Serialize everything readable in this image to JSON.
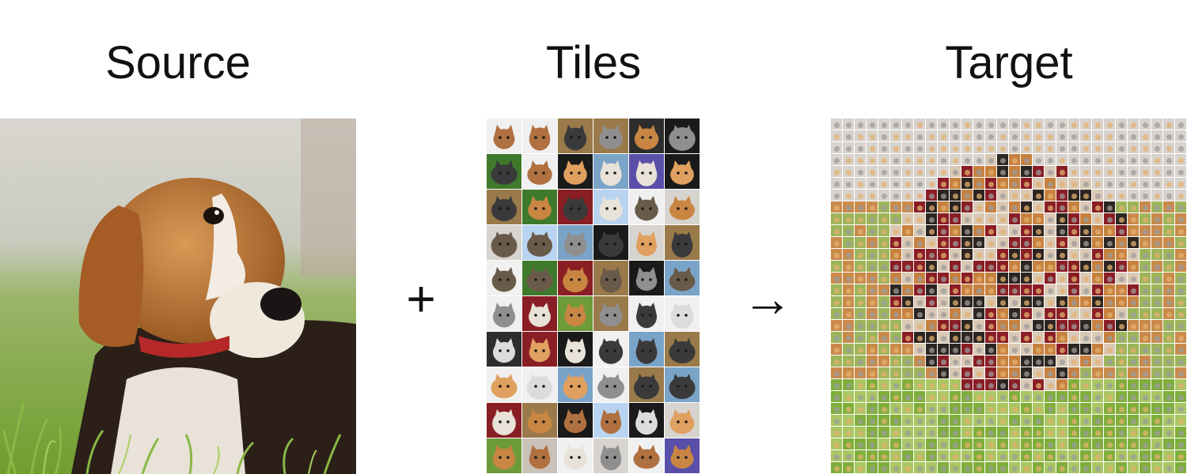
{
  "headings": {
    "source": "Source",
    "tiles": "Tiles",
    "target": "Target"
  },
  "operators": {
    "plus": "+",
    "arrow": "→"
  },
  "icons": {
    "source_image": "beagle-puppy-photo",
    "tile_grid": "cat-photo-tiles",
    "target_mosaic": "photo-mosaic-of-beagle"
  },
  "colors": {
    "heading_text": "#111111",
    "background": "#ffffff",
    "grass": "#7fae3a",
    "dog_tan": "#c7813f",
    "dog_dark": "#2b1f18",
    "collar": "#b5292a"
  }
}
